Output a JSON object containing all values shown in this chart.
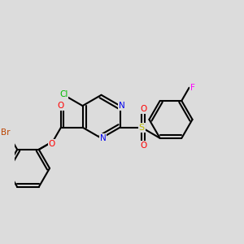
{
  "background_color": "#dcdcdc",
  "bond_color": "#000000",
  "atom_colors": {
    "Cl": "#00bb00",
    "N": "#0000ee",
    "O": "#ff0000",
    "Br": "#bb4400",
    "S": "#bbbb00",
    "F": "#ff00ff",
    "C": "#000000"
  },
  "figsize": [
    3.0,
    3.0
  ],
  "dpi": 100
}
